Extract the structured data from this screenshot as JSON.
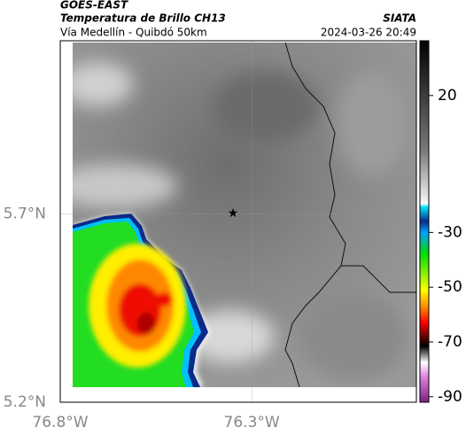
{
  "header": {
    "source": "GOES-EAST",
    "product": "Temperatura de Brillo CH13",
    "location": "Vía Medellín - Quibdó 50km",
    "agency": "SIATA",
    "datetime": "2024-03-26 20:49"
  },
  "map": {
    "lonlim": [
      -76.8,
      -75.87
    ],
    "latlim": [
      5.2,
      6.16
    ],
    "lon_ticks": [
      {
        "value": -76.8,
        "label": "76.8°W"
      },
      {
        "value": -76.3,
        "label": "76.3°W"
      }
    ],
    "lat_ticks": [
      {
        "value": 5.7,
        "label": "5.7°N"
      },
      {
        "value": 5.2,
        "label": "5.2°N"
      }
    ]
  },
  "colorbar": {
    "lim": [
      -92,
      40
    ],
    "ticks": [
      20,
      -30,
      -50,
      -70,
      -90
    ]
  }
}
